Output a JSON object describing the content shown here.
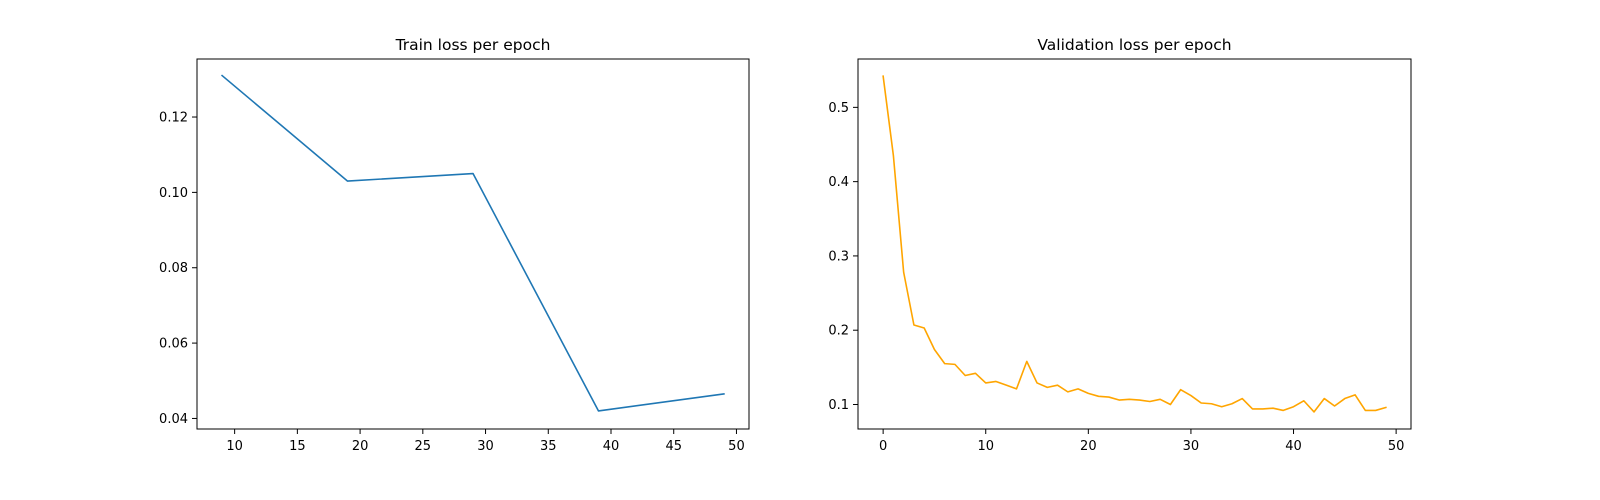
{
  "chart_data": [
    {
      "type": "line",
      "title": "Train loss per epoch",
      "xlabel": "",
      "ylabel": "",
      "xlim": [
        7.0,
        51.0
      ],
      "ylim": [
        0.0372,
        0.1354
      ],
      "xticks": [
        10,
        15,
        20,
        25,
        30,
        35,
        40,
        45,
        50
      ],
      "yticks": [
        0.04,
        0.06,
        0.08,
        0.1,
        0.12
      ],
      "ytick_format": "fixed2",
      "grid": false,
      "legend": "none",
      "series": [
        {
          "color": "#1f77b4",
          "x": [
            9,
            19,
            29,
            39,
            49
          ],
          "y": [
            0.131,
            0.103,
            0.105,
            0.042,
            0.0465
          ]
        }
      ]
    },
    {
      "type": "line",
      "title": "Validation loss per epoch",
      "xlabel": "",
      "ylabel": "",
      "xlim": [
        -2.45,
        51.45
      ],
      "ylim": [
        0.067,
        0.5651
      ],
      "xticks": [
        0,
        10,
        20,
        30,
        40,
        50
      ],
      "yticks": [
        0.1,
        0.2,
        0.3,
        0.4,
        0.5
      ],
      "ytick_format": "fixed1",
      "grid": false,
      "legend": "none",
      "series": [
        {
          "color": "#ffa500",
          "x": [
            0,
            1,
            2,
            3,
            4,
            5,
            6,
            7,
            8,
            9,
            10,
            11,
            12,
            13,
            14,
            15,
            16,
            17,
            18,
            19,
            20,
            21,
            22,
            23,
            24,
            25,
            26,
            27,
            28,
            29,
            30,
            31,
            32,
            33,
            34,
            35,
            36,
            37,
            38,
            39,
            40,
            41,
            42,
            43,
            44,
            45,
            46,
            47,
            48,
            49
          ],
          "y": [
            0.542,
            0.435,
            0.278,
            0.207,
            0.203,
            0.174,
            0.155,
            0.154,
            0.139,
            0.142,
            0.129,
            0.131,
            0.126,
            0.121,
            0.158,
            0.129,
            0.123,
            0.126,
            0.117,
            0.121,
            0.115,
            0.111,
            0.11,
            0.106,
            0.107,
            0.106,
            0.104,
            0.107,
            0.1,
            0.12,
            0.112,
            0.102,
            0.101,
            0.097,
            0.101,
            0.108,
            0.094,
            0.094,
            0.095,
            0.092,
            0.097,
            0.105,
            0.09,
            0.108,
            0.098,
            0.108,
            0.113,
            0.092,
            0.092,
            0.096
          ]
        }
      ]
    }
  ]
}
